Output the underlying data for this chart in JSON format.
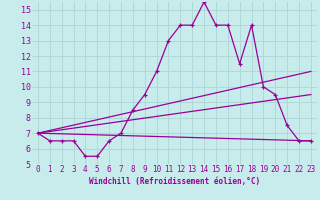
{
  "title": "",
  "xlabel": "Windchill (Refroidissement éolien,°C)",
  "ylabel": "",
  "bg_color": "#c8ecec",
  "grid_color": "#b0d8d8",
  "line_color": "#990099",
  "xlim": [
    -0.5,
    23.5
  ],
  "ylim": [
    5,
    15.5
  ],
  "xticks": [
    0,
    1,
    2,
    3,
    4,
    5,
    6,
    7,
    8,
    9,
    10,
    11,
    12,
    13,
    14,
    15,
    16,
    17,
    18,
    19,
    20,
    21,
    22,
    23
  ],
  "yticks": [
    5,
    6,
    7,
    8,
    9,
    10,
    11,
    12,
    13,
    14,
    15
  ],
  "series": [
    {
      "x": [
        0,
        1,
        2,
        3,
        4,
        5,
        6,
        7,
        8,
        9,
        10,
        11,
        12,
        13,
        14,
        15,
        16,
        17,
        18,
        19,
        20,
        21,
        22,
        23
      ],
      "y": [
        7,
        6.5,
        6.5,
        6.5,
        5.5,
        5.5,
        6.5,
        7,
        8.5,
        9.5,
        11,
        13,
        14,
        14,
        15.5,
        14,
        14,
        11.5,
        14,
        10,
        9.5,
        7.5,
        6.5,
        6.5
      ]
    },
    {
      "x": [
        0,
        23
      ],
      "y": [
        7,
        6.5
      ]
    },
    {
      "x": [
        0,
        23
      ],
      "y": [
        7,
        9.5
      ]
    },
    {
      "x": [
        0,
        23
      ],
      "y": [
        7,
        11
      ]
    }
  ]
}
